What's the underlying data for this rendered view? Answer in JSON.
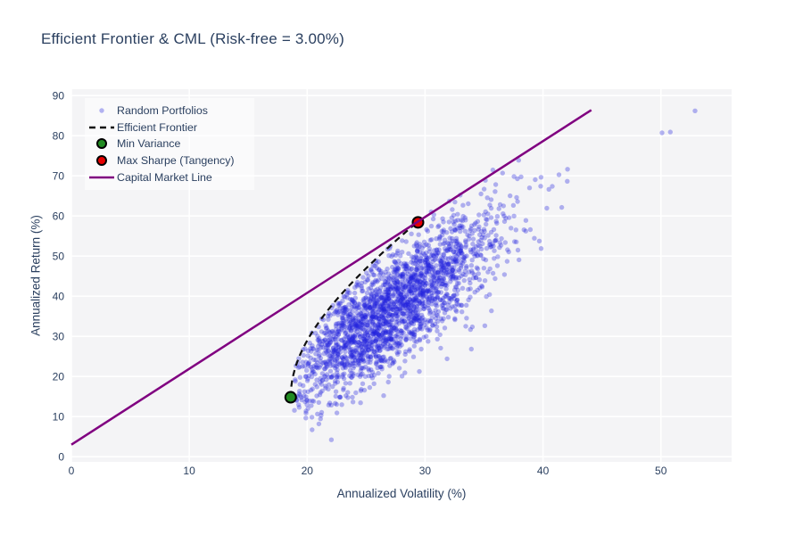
{
  "chart_data": {
    "type": "scatter",
    "title": "Efficient Frontier & CML (Risk-free = 3.00%)",
    "xlabel": "Annualized Volatility (%)",
    "ylabel": "Annualized Return (%)",
    "x_range": [
      0,
      56
    ],
    "y_range": [
      -1.3,
      91.6
    ],
    "x_ticks": [
      0,
      10,
      20,
      30,
      40,
      50
    ],
    "y_ticks": [
      0,
      10,
      20,
      30,
      40,
      50,
      60,
      70,
      80,
      90
    ],
    "grid": true,
    "risk_free_rate_pct": 3.0,
    "legend": {
      "position": "top-left",
      "items": [
        {
          "label": "Random Portfolios",
          "symbol": "dot"
        },
        {
          "label": "Efficient Frontier",
          "symbol": "dashed-line"
        },
        {
          "label": "Min Variance",
          "symbol": "green-circle"
        },
        {
          "label": "Max Sharpe (Tangency)",
          "symbol": "red-circle"
        },
        {
          "label": "Capital Market Line",
          "symbol": "purple-line"
        }
      ]
    },
    "random_portfolios": {
      "count": 2200,
      "seed": 7,
      "mean": [
        27.2,
        37.0
      ],
      "std": [
        4.4,
        11.2
      ],
      "corr": 0.78,
      "min_vol_boundary": {
        "v0": 18.6,
        "r0": 14.8,
        "k": 0.27
      },
      "marker_radius": 2.7,
      "color": "#2222dd",
      "opacity": 0.33,
      "outliers": [
        [
          50.1,
          80.7
        ],
        [
          50.8,
          80.9
        ],
        [
          52.9,
          86.2
        ]
      ]
    },
    "efficient_frontier": {
      "r_start": 14.8,
      "r_end": 58.4,
      "v0": 18.6,
      "r0": 14.8,
      "k": 0.27,
      "color": "#111111",
      "dash": "7 5",
      "width": 2.2
    },
    "min_variance_point": {
      "x": 18.6,
      "y": 14.8,
      "color": "#228B22",
      "outline": "#000000",
      "radius": 6
    },
    "max_sharpe_point": {
      "x": 29.4,
      "y": 58.4,
      "color": "#e60000",
      "outline": "#000000",
      "radius": 6
    },
    "capital_market_line": {
      "x": [
        0,
        44.1
      ],
      "y": [
        3.0,
        86.4
      ],
      "color": "#800080",
      "width": 2.5
    },
    "colors": {
      "plot_bg": "#f4f4f6",
      "grid": "#ffffff",
      "text": "#2a3f5f",
      "paper_bg": "#ffffff"
    }
  }
}
